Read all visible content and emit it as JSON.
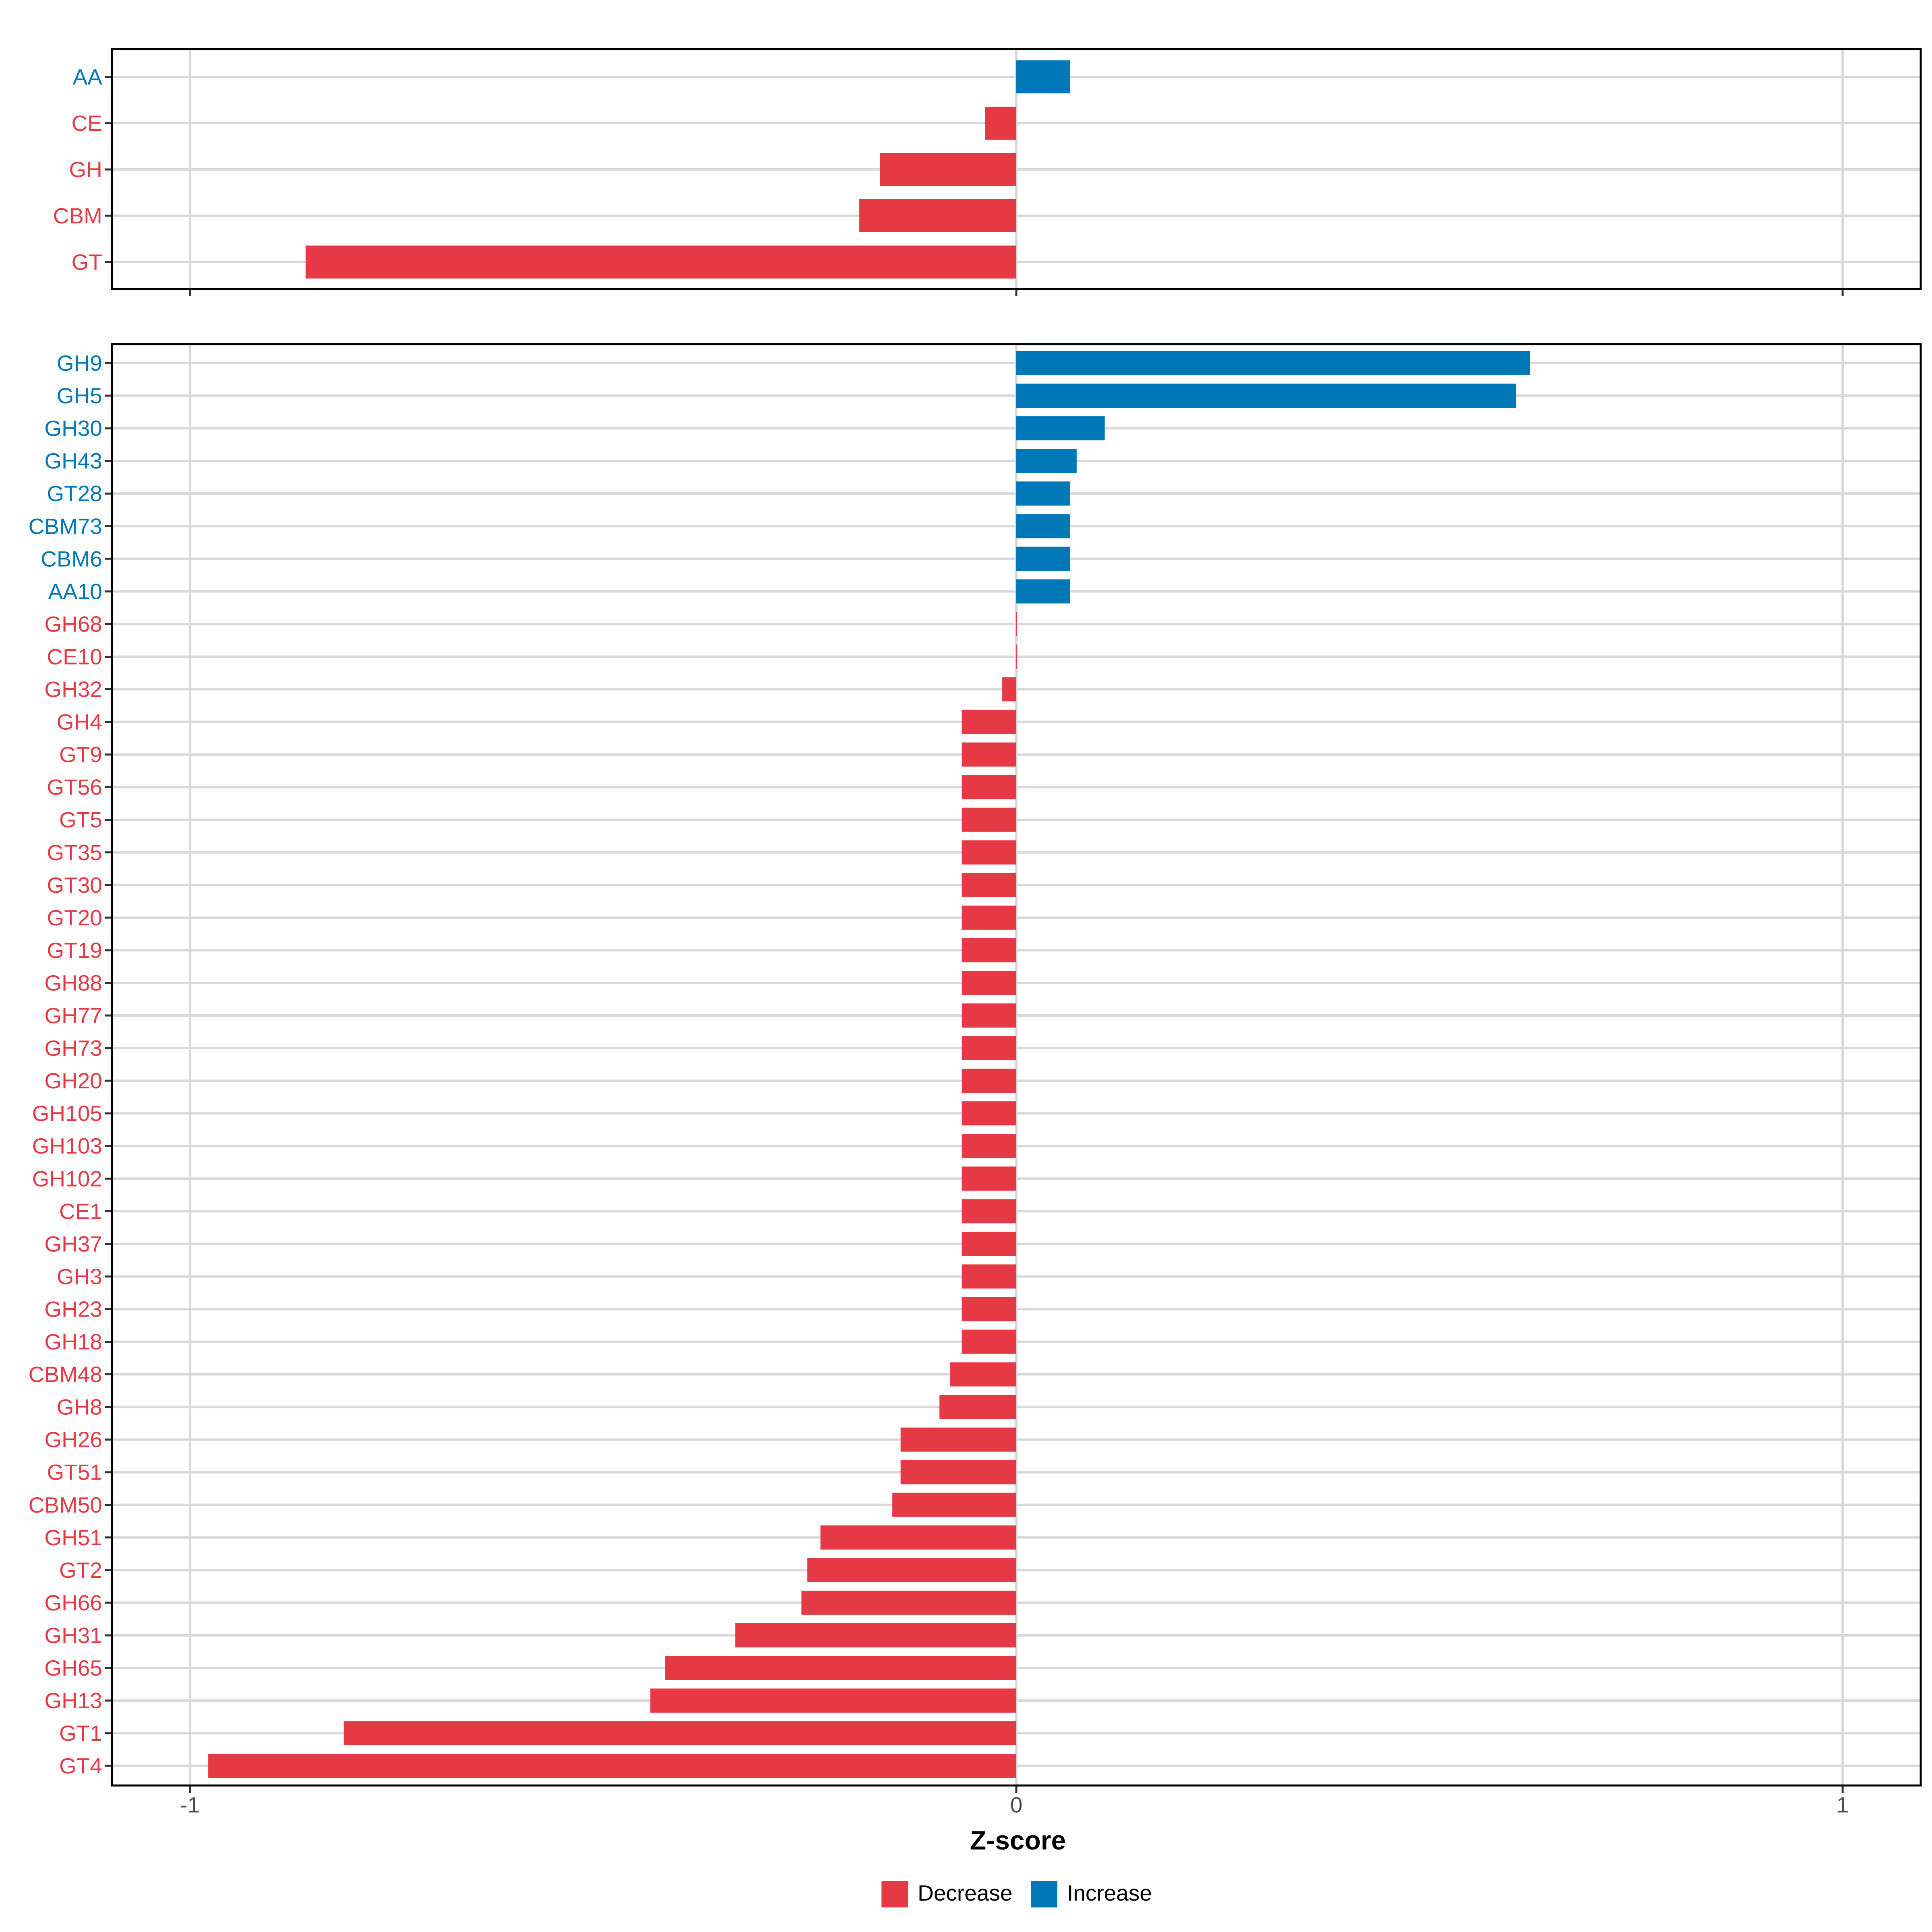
{
  "colors": {
    "decrease": "#E63946",
    "increase": "#0077B6",
    "grid": "#d9d9d9",
    "panel_border": "#000000"
  },
  "chart_data": [
    {
      "type": "bar",
      "orientation": "horizontal",
      "panel": "top",
      "categories": [
        "AA",
        "CE",
        "GH",
        "CBM",
        "GT"
      ],
      "values": [
        0.065,
        -0.038,
        -0.165,
        -0.19,
        -0.86
      ],
      "xlim": [
        -1.0,
        1.0
      ],
      "xticks": [
        -1,
        0,
        1
      ],
      "grid": true
    },
    {
      "type": "bar",
      "orientation": "horizontal",
      "panel": "bottom",
      "categories": [
        "GH9",
        "GH5",
        "GH30",
        "GH43",
        "GT28",
        "CBM73",
        "CBM6",
        "AA10",
        "GH68",
        "CE10",
        "GH32",
        "GH4",
        "GT9",
        "GT56",
        "GT5",
        "GT35",
        "GT30",
        "GT20",
        "GT19",
        "GH88",
        "GH77",
        "GH73",
        "GH20",
        "GH105",
        "GH103",
        "GH102",
        "CE1",
        "GH37",
        "GH3",
        "GH23",
        "GH18",
        "CBM48",
        "GH8",
        "GH26",
        "GT51",
        "CBM50",
        "GH51",
        "GT2",
        "GH66",
        "GH31",
        "GH65",
        "GH13",
        "GT1",
        "GT4"
      ],
      "values": [
        0.622,
        0.605,
        0.107,
        0.073,
        0.065,
        0.065,
        0.065,
        0.065,
        0.0,
        0.0,
        -0.017,
        -0.066,
        -0.066,
        -0.066,
        -0.066,
        -0.066,
        -0.066,
        -0.066,
        -0.066,
        -0.066,
        -0.066,
        -0.066,
        -0.066,
        -0.066,
        -0.066,
        -0.066,
        -0.066,
        -0.066,
        -0.066,
        -0.066,
        -0.066,
        -0.08,
        -0.093,
        -0.14,
        -0.14,
        -0.15,
        -0.237,
        -0.253,
        -0.26,
        -0.34,
        -0.425,
        -0.443,
        -0.814,
        -0.978
      ],
      "xlim": [
        -1.0,
        1.0
      ],
      "xticks": [
        -1,
        0,
        1
      ],
      "xlabel": "Z-score",
      "grid": true
    }
  ],
  "legend": {
    "placement": "bottom",
    "items": [
      {
        "label": "Decrease",
        "color": "#E63946"
      },
      {
        "label": "Increase",
        "color": "#0077B6"
      }
    ]
  }
}
